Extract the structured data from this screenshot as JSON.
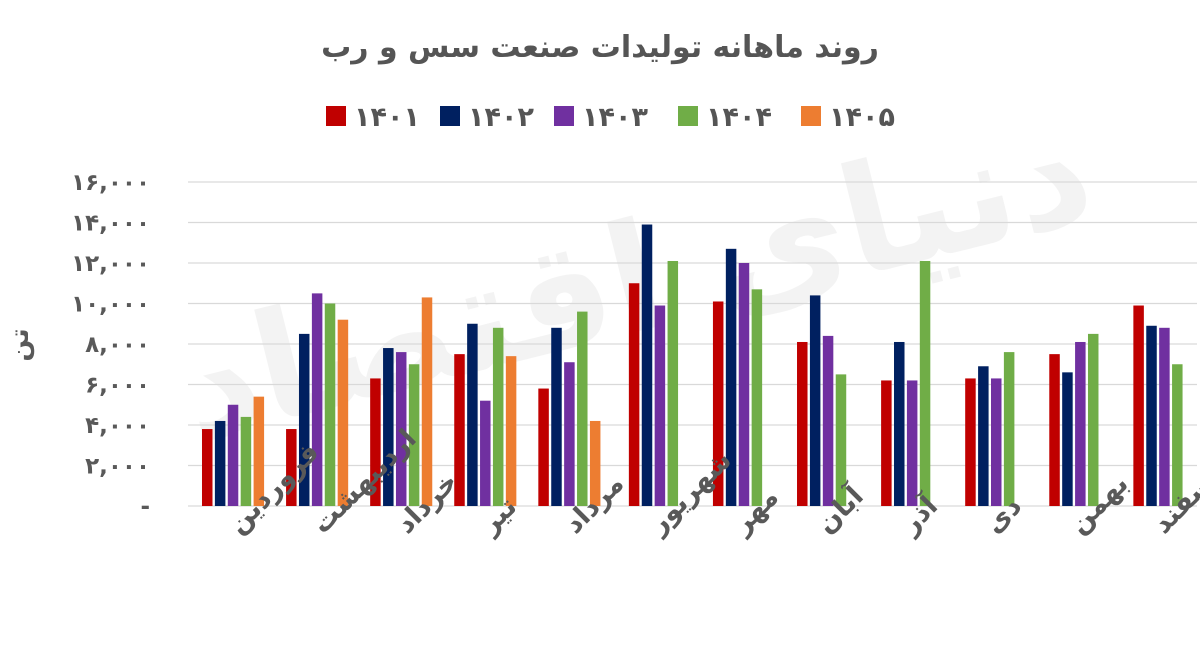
{
  "chart_data": {
    "type": "bar",
    "title": "روند ماهانه تولیدات صنعت سس و رب",
    "ylabel": "تن",
    "xlabel": "",
    "ylim": [
      0,
      16000
    ],
    "ytick_values": [
      0,
      2000,
      4000,
      6000,
      8000,
      10000,
      12000,
      14000,
      16000
    ],
    "ytick_labels": [
      "-",
      "۲,۰۰۰",
      "۴,۰۰۰",
      "۶,۰۰۰",
      "۸,۰۰۰",
      "۱۰,۰۰۰",
      "۱۲,۰۰۰",
      "۱۴,۰۰۰",
      "۱۶,۰۰۰"
    ],
    "grid": true,
    "legend_position": "top",
    "categories": [
      "فروردین",
      "اردیبهشت",
      "خرداد",
      "تیر",
      "مرداد",
      "شهریور",
      "مهر",
      "آبان",
      "آذر",
      "دی",
      "بهمن",
      "اسفند"
    ],
    "series": [
      {
        "name": "۱۴۰۱",
        "color": "#C00000",
        "values": [
          3800,
          3800,
          6300,
          7500,
          5800,
          11000,
          10100,
          8100,
          6200,
          6300,
          7500,
          9900
        ]
      },
      {
        "name": "۱۴۰۲",
        "color": "#002060",
        "values": [
          4200,
          8500,
          7800,
          9000,
          8800,
          13900,
          12700,
          10400,
          8100,
          6900,
          6600,
          8900
        ]
      },
      {
        "name": "۱۴۰۳",
        "color": "#7030A0",
        "values": [
          5000,
          10500,
          7600,
          5200,
          7100,
          9900,
          12000,
          8400,
          6200,
          6300,
          8100,
          8800
        ]
      },
      {
        "name": "۱۴۰۴",
        "color": "#70AD47",
        "values": [
          4400,
          10000,
          7000,
          8800,
          9600,
          12100,
          10700,
          6500,
          12100,
          7600,
          8500,
          7000
        ]
      },
      {
        "name": "۱۴۰۵",
        "color": "#ED7D31",
        "values": [
          5400,
          9200,
          10300,
          7400,
          4200,
          null,
          null,
          null,
          null,
          null,
          null,
          null
        ]
      }
    ]
  }
}
